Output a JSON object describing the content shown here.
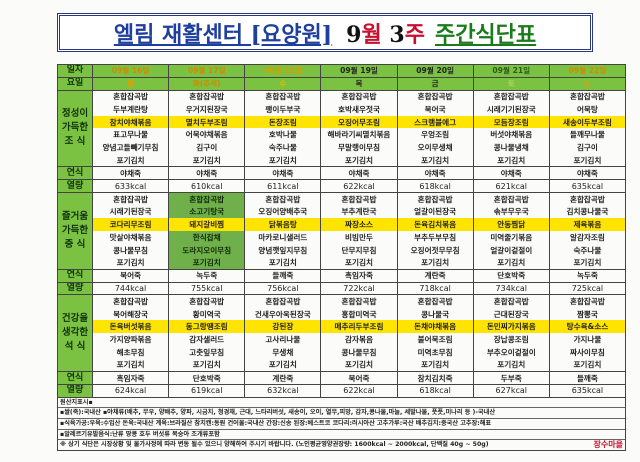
{
  "title": {
    "part1": "엘림 재활센터 [요양원]",
    "month": "9",
    "month_unit": "월",
    "week": "3",
    "week_unit": "주",
    "part2": "주간식단표"
  },
  "header": {
    "date_label": "일자",
    "day_label": "요일",
    "dates": [
      "09월 16일",
      "09월 17일",
      "09월 18일",
      "09월 19일",
      "09월 20일",
      "09월 21일",
      "09월 22일"
    ],
    "days": [
      "월",
      "화(추석)",
      "수",
      "목",
      "금",
      "토",
      "일"
    ],
    "date_colors": [
      "#d08a00",
      "#d08a00",
      "#d0a000",
      "#222222",
      "#222222",
      "#2a5a1a",
      "#d08a00"
    ],
    "day_colors": [
      "#e0a000",
      "#d08a00",
      "#e0c000",
      "#222222",
      "#222222",
      "#b0d060",
      "#e0a000"
    ]
  },
  "meals": [
    {
      "label": "정성이 가득한 조 식",
      "snack_label": "연식",
      "kcal_label": "열량",
      "menus": [
        [
          "혼합잡곡밥",
          "두부계란탕",
          "참치야채볶음",
          "표고무나물",
          "양념고들빼기무침",
          "포기김치"
        ],
        [
          "혼합잡곡밥",
          "우거지된장국",
          "멸치두부조림",
          "어묵야채볶음",
          "김구이",
          "포기김치"
        ],
        [
          "혼합잡곡밥",
          "팽이두부국",
          "돈장조림",
          "호박나물",
          "숙주나물",
          "포기김치"
        ],
        [
          "혼합잡곡밥",
          "호박새우젓국",
          "오징어무조림",
          "해바라기씨멸치볶음",
          "무말랭이무침",
          "포기김치"
        ],
        [
          "혼합잡곡밥",
          "북어국",
          "스크램블에그",
          "우엉조림",
          "오이무생채",
          "포기김치"
        ],
        [
          "혼합잡곡밥",
          "시래기기된장국",
          "모듬장조림",
          "버섯야채볶음",
          "콩나물냉채",
          "포기김치"
        ],
        [
          "혼합잡곡밥",
          "어묵탕",
          "새송이두부조림",
          "들깨무나물",
          "김구이",
          "포기김치"
        ]
      ],
      "snacks": [
        "야채죽",
        "야채죽",
        "야채죽",
        "야채죽",
        "야채죽",
        "야채죽",
        "야채죽"
      ],
      "kcal": [
        "633kcal",
        "610kcal",
        "611kcal",
        "622kcal",
        "618kcal",
        "621kcal",
        "635kcal"
      ]
    },
    {
      "label": "즐거움 가득한 중 식",
      "snack_label": "연식",
      "kcal_label": "열량",
      "menus": [
        [
          "혼합잡곡밥",
          "시래기된장국",
          "코다리무조림",
          "맛살야채볶음",
          "콩나물무침",
          "포기김치"
        ],
        [
          "혼합잡곡밥",
          "소고기탕국",
          "돼지갈비찜",
          "한식잡채",
          "도라지오이무침",
          "포기김치"
        ],
        [
          "혼합잡곡밥",
          "오징어양배추국",
          "닭볶음탕",
          "마카로니샐러드",
          "양념깻잎지무침",
          "포기김치"
        ],
        [
          "혼합잡곡밥",
          "부추계란국",
          "짜장소스",
          "비빔만두",
          "단무지무침",
          "포기김치"
        ],
        [
          "혼합잡곡밥",
          "얼갈이된장국",
          "돈육김치볶음",
          "부추두부무침",
          "오징어젓무무침",
          "포기김치"
        ],
        [
          "혼합잡곡밥",
          "솎부무우국",
          "안동찜닭",
          "미역줄기볶음",
          "얼갈이겉절이",
          "포기김치"
        ],
        [
          "혼합잡곡밥",
          "김치콩나물국",
          "제육볶음",
          "알감자조림",
          "숙주나물",
          "포기김치"
        ]
      ],
      "snacks": [
        "북어죽",
        "녹두죽",
        "들깨죽",
        "흑임자죽",
        "계란죽",
        "단호박죽",
        "녹두죽"
      ],
      "kcal": [
        "744kcal",
        "755kcal",
        "756kcal",
        "722kcal",
        "718kcal",
        "734kcal",
        "725kcal"
      ]
    },
    {
      "label": "건강을 생각한 석 식",
      "snack_label": "연식",
      "kcal_label": "열량",
      "menus": [
        [
          "혼합잡곡밥",
          "북어해장국",
          "돈육버섯볶음",
          "가지양파볶음",
          "해초무침",
          "포기김치"
        ],
        [
          "혼합잡곡밥",
          "황미역국",
          "동그랑땡조림",
          "감자샐러드",
          "고춧잎무침",
          "포기김치"
        ],
        [
          "혼합잡곡밥",
          "건새우아욱된장국",
          "강된장",
          "고사리나물",
          "무생채",
          "포기김치"
        ],
        [
          "혼합잡곡밥",
          "홍합미역국",
          "메추리두부조림",
          "감자볶음",
          "콩나물무침",
          "포기김치"
        ],
        [
          "혼합잡곡밥",
          "콩나물국",
          "돈채야채볶음",
          "불어묵조림",
          "미역초무침",
          "포기김치"
        ],
        [
          "혼합잡곡밥",
          "근대된장국",
          "돈민찌가지볶음",
          "장납콩조림",
          "부추오이겉절이",
          "포기김치"
        ],
        [
          "혼합잡곡밥",
          "짬뽕국",
          "탕수육&소스",
          "가지나물",
          "짜사이무침",
          "포기김치"
        ]
      ],
      "snacks": [
        "흑임자죽",
        "단호박죽",
        "계란죽",
        "북어죽",
        "참치김치죽",
        "두부죽",
        "들깨죽"
      ],
      "kcal": [
        "624kcal",
        "619kcal",
        "632kcal",
        "622kcal",
        "618kcal",
        "627kcal",
        "635kcal"
      ]
    }
  ],
  "highlight_colors": {
    "main_dish": "#ffe400",
    "label_bg": "#7cc242",
    "special_day": "#6fb04a"
  },
  "footer": {
    "origin_title": "원산지표시▪",
    "line1": "▪쌀(죽):국내산 ▪야채류(배추, 무우, 양배추, 양파, 시금치, 청경채, 근대, 느타리버섯, 새송이, 오이, 열무,피망, 감자,콩나물,마늘, 세발나물, 풋풋,미나리 등 )-국내산",
    "line2": "▪식육가공:우육:수입산 돈육:국내산 계육:브라질산 참치캔:동원 건어물:국내산 간장:신송 된장:베스트코 코다리:러시아산 고추가루:국산 배추김치:중국산 고추장:해표",
    "line3": "▪알레르기유발음식:난류 땅콩 호두 버섯류 복숭아 조개류포함",
    "notice": "※ 상기 식단은 시장상황 및 물가사정에 따라 변동 될수 있으니 양해하여 주시기 바랍니다. (노인평균영양권장량: 1600kcal ~ 2000kcal, 단백질 40g ~ 50g)",
    "logo": "장수마을"
  }
}
